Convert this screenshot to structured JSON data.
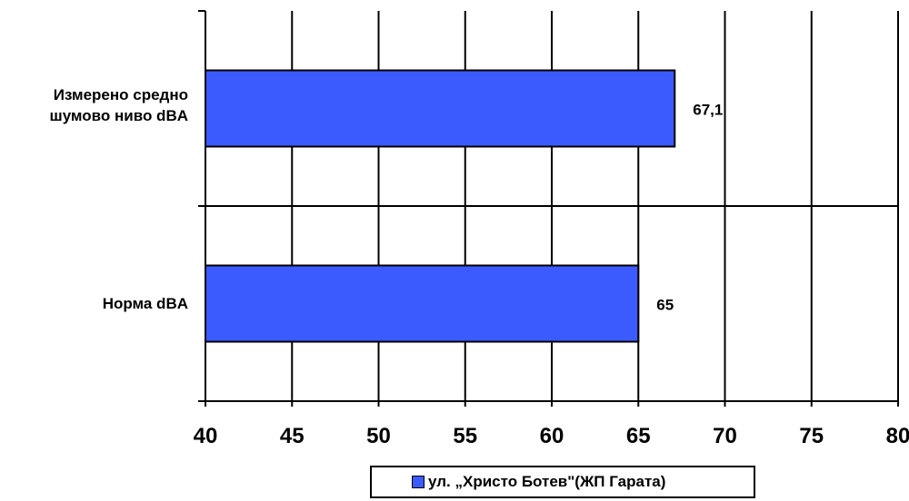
{
  "chart_data": {
    "type": "bar",
    "orientation": "horizontal",
    "categories": [
      "Измерено средно\nшумово ниво dBA",
      "Норма dBA"
    ],
    "series": [
      {
        "name": "ул. „Христо Ботев\"(ЖП Гарата)",
        "values": [
          67.1,
          65
        ],
        "data_labels": [
          "67,1",
          "65"
        ]
      }
    ],
    "xlim": [
      40,
      80
    ],
    "xticks": [
      "40",
      "45",
      "50",
      "55",
      "60",
      "65",
      "70",
      "75",
      "80"
    ],
    "grid": true,
    "legend_position": "bottom",
    "colors": {
      "bar": "#3b5bff",
      "grid": "#000000"
    }
  }
}
